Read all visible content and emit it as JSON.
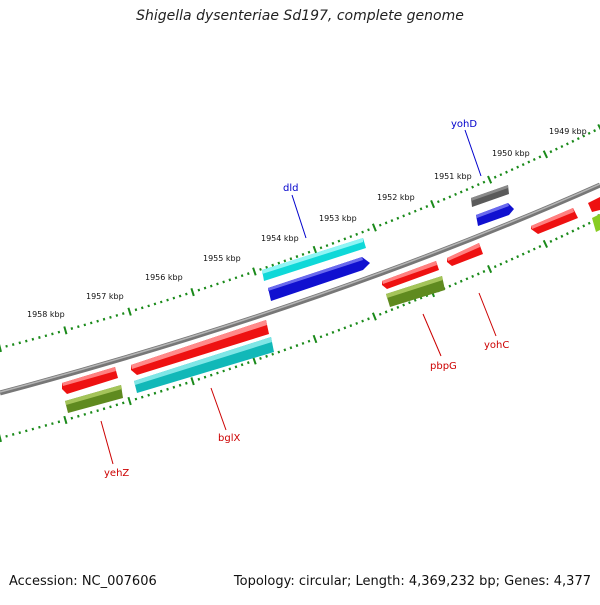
{
  "title": "Shigella dysenteriae Sd197, complete genome",
  "accession": "Accession: NC_007606",
  "summary": "Topology: circular; Length: 4,369,232 bp; Genes: 4,377",
  "kbp_labels": [
    "1949 kbp",
    "1950 kbp",
    "1951 kbp",
    "1952 kbp",
    "1953 kbp",
    "1954 kbp",
    "1955 kbp",
    "1956 kbp",
    "1957 kbp",
    "1958 kbp"
  ],
  "gene_labels": {
    "yohD": "yohD",
    "dld": "dld",
    "pbpG": "pbpG",
    "yohC": "yohC",
    "bglX": "bglX",
    "yehZ": "yehZ"
  },
  "colors": {
    "red": "#ee1111",
    "cyan": "#11dddd",
    "blue": "#1111dd",
    "olive": "#6b8e23",
    "gray": "#666666",
    "tick": "#1a8a1a",
    "backbone": "#808080",
    "label_blue": "#0000cc",
    "label_red": "#cc0000"
  }
}
